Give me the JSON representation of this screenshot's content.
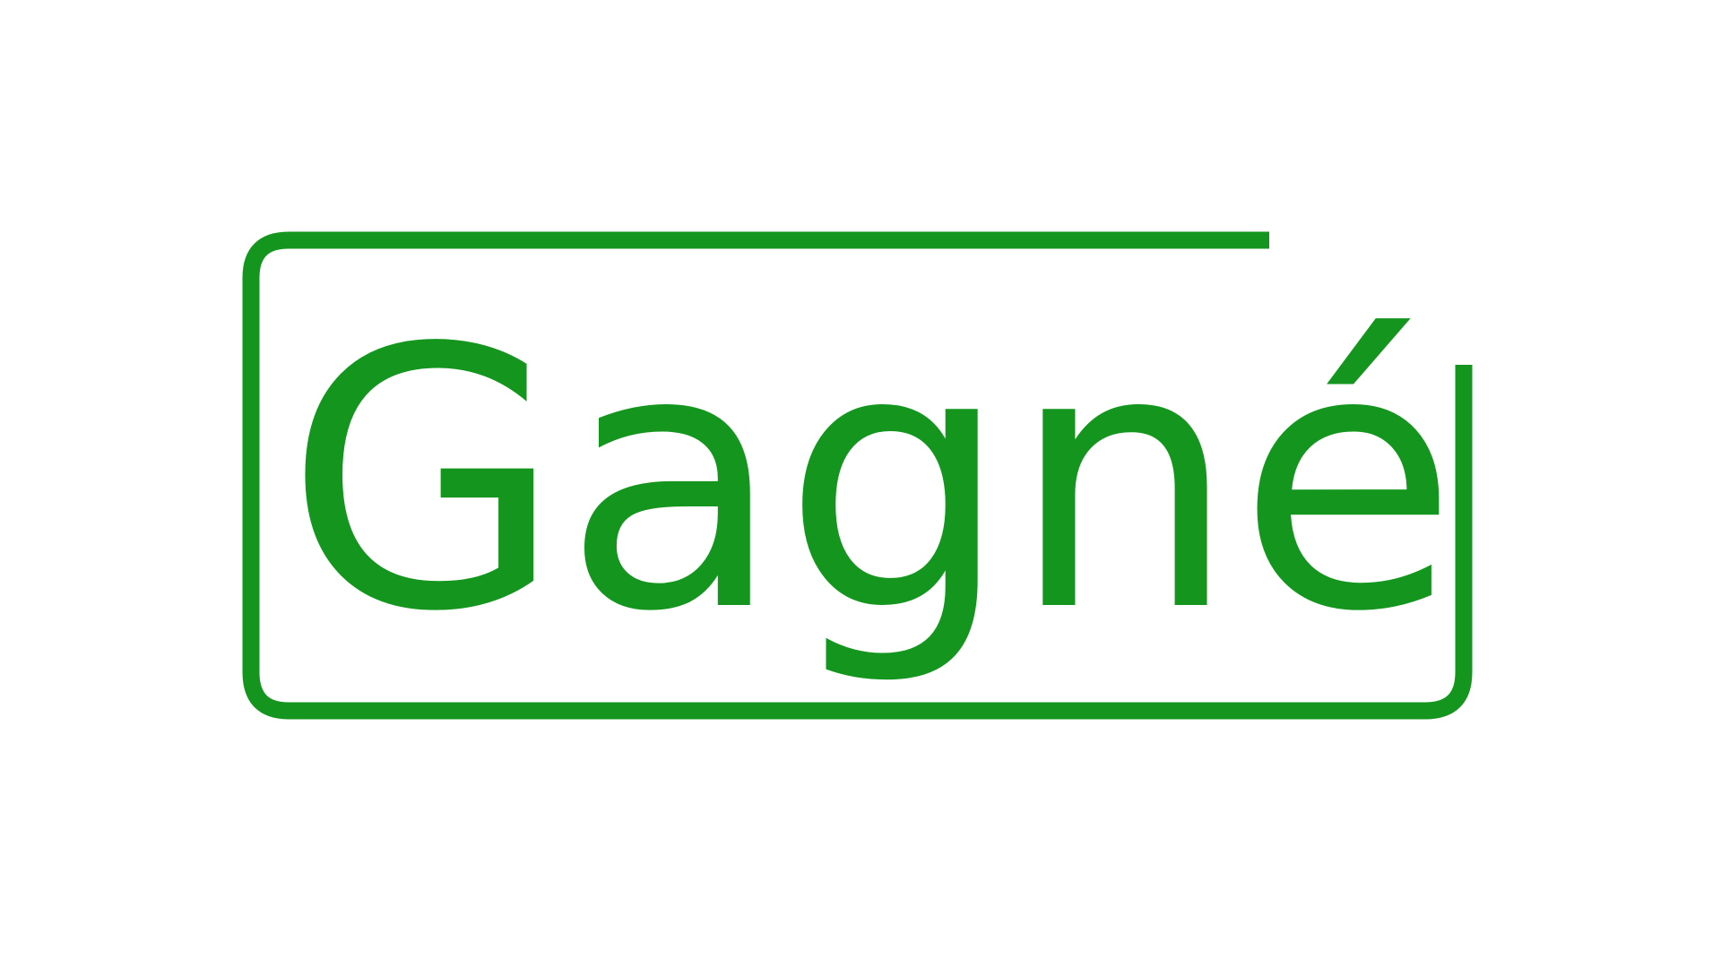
{
  "logo": {
    "word": "Gagné",
    "color": "#14961e",
    "background": "#ffffff"
  }
}
